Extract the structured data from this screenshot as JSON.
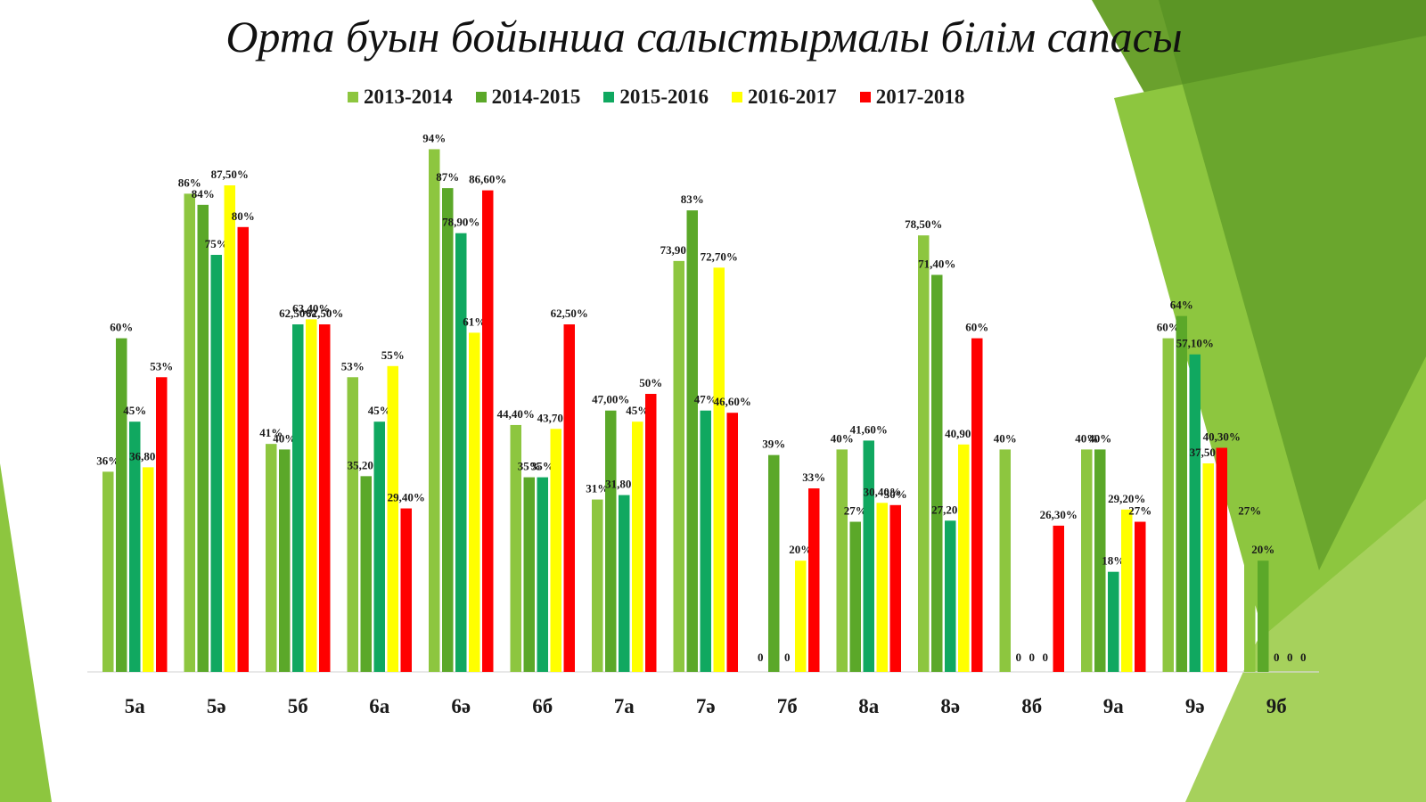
{
  "chart_data": {
    "type": "bar",
    "title": "Орта буын бойынша салыстырмалы білім сапасы",
    "categories": [
      "5а",
      "5ә",
      "5б",
      "6а",
      "6ә",
      "6б",
      "7а",
      "7ә",
      "7б",
      "8а",
      "8ә",
      "8б",
      "9а",
      "9ә",
      "9б"
    ],
    "ylim": [
      0,
      100
    ],
    "grid": false,
    "legend_position": "top",
    "series": [
      {
        "name": "2013-2014",
        "color": "#8dc63f",
        "values": [
          36,
          86,
          41,
          53,
          94,
          44.4,
          31,
          73.9,
          0,
          40,
          78.5,
          40,
          40,
          60,
          27
        ],
        "labels": [
          "36%",
          "86%",
          "41%",
          "53%",
          "94%",
          "44,40%",
          "31%",
          "73,90%",
          "0",
          "40%",
          "78,50%",
          "40%",
          "40%",
          "60%",
          "27%"
        ]
      },
      {
        "name": "2014-2015",
        "color": "#5ba829",
        "values": [
          60,
          84,
          40,
          35.2,
          87,
          35,
          47,
          83,
          39,
          27,
          71.4,
          0,
          40,
          64,
          20
        ],
        "labels": [
          "60%",
          "84%",
          "40%",
          "35,20%",
          "87%",
          "35%",
          "47,00%",
          "83%",
          "39%",
          "27%",
          "71,40%",
          "0",
          "40%",
          "64%",
          "20%"
        ]
      },
      {
        "name": "2015-2016",
        "color": "#10a860",
        "values": [
          45,
          75,
          62.5,
          45,
          78.9,
          35,
          31.8,
          47,
          0,
          41.6,
          27.2,
          0,
          18,
          57.1,
          0
        ],
        "labels": [
          "45%",
          "75%",
          "62,50%",
          "45%",
          "78,90%",
          "35%",
          "31,80%",
          "47%",
          "0",
          "41,60%",
          "27,20%",
          "0",
          "18%",
          "57,10%",
          "0"
        ]
      },
      {
        "name": "2016-2017",
        "color": "#ffff00",
        "values": [
          36.8,
          87.5,
          63.4,
          55,
          61,
          43.7,
          45,
          72.7,
          20,
          30.4,
          40.9,
          0,
          29.2,
          37.5,
          0
        ],
        "labels": [
          "36,80%",
          "87,50%",
          "63,40%",
          "55%",
          "61%",
          "43,70%",
          "45%",
          "72,70%",
          "20%",
          "30,40%",
          "40,90%",
          "0",
          "29,20%",
          "37,50%",
          "0"
        ]
      },
      {
        "name": "2017-2018",
        "color": "#ff0000",
        "values": [
          53,
          80,
          62.5,
          29.4,
          86.6,
          62.5,
          50,
          46.6,
          33,
          30,
          60,
          26.3,
          27,
          40.3,
          0
        ],
        "labels": [
          "53%",
          "80%",
          "62,50%",
          "29,40%",
          "86,60%",
          "62,50%",
          "50%",
          "46,60%",
          "33%",
          "30%",
          "60%",
          "26,30%",
          "27%",
          "40,30%",
          "0"
        ]
      }
    ]
  },
  "theme": {
    "background_shapes_colors": [
      "#6aa12d",
      "#8dc63f",
      "#a6d15c",
      "#4e8c1f"
    ]
  }
}
